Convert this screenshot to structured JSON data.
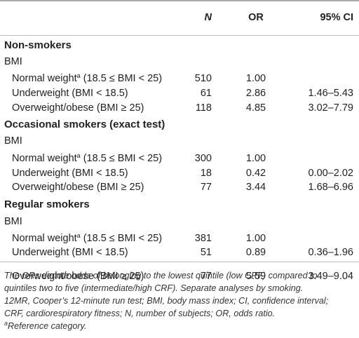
{
  "header": {
    "col_label": "",
    "col_n": "N",
    "col_or": "OR",
    "col_ci": "95% CI"
  },
  "groups": [
    {
      "title": "Non-smokers",
      "subhead": "BMI",
      "rows": [
        {
          "label": "Normal weight",
          "sup": "a",
          "label_rest": " (18.5 ≤ BMI < 25)",
          "n": "510",
          "or": "1.00",
          "ci": ""
        },
        {
          "label": "Underweight (BMI < 18.5)",
          "sup": "",
          "label_rest": "",
          "n": "61",
          "or": "2.86",
          "ci": "1.46–5.43"
        },
        {
          "label": "Overweight/obese (BMI ≥ 25)",
          "sup": "",
          "label_rest": "",
          "n": "118",
          "or": "4.85",
          "ci": "3.02–7.79"
        }
      ]
    },
    {
      "title": "Occasional smokers (exact test)",
      "subhead": "BMI",
      "rows": [
        {
          "label": "Normal weight",
          "sup": "a",
          "label_rest": " (18.5 ≤ BMI < 25)",
          "n": "300",
          "or": "1.00",
          "ci": ""
        },
        {
          "label": "Underweight (BMI < 18.5)",
          "sup": "",
          "label_rest": "",
          "n": "18",
          "or": "0.42",
          "ci": "0.00–2.02"
        },
        {
          "label": "Overweight/obese (BMI ≥ 25)",
          "sup": "",
          "label_rest": "",
          "n": "77",
          "or": "3.44",
          "ci": "1.68–6.96"
        }
      ]
    },
    {
      "title": "Regular smokers",
      "subhead": "BMI",
      "rows": [
        {
          "label": "Normal weight",
          "sup": "a",
          "label_rest": " (18.5 ≤ BMI < 25)",
          "n": "381",
          "or": "1.00",
          "ci": ""
        },
        {
          "label": "Underweight (BMI < 18.5)",
          "sup": "",
          "label_rest": "",
          "n": "51",
          "or": "0.89",
          "ci": "0.36–1.96"
        },
        {
          "label": "Overweight/obese (BMI ≥ 25)",
          "sup": "",
          "label_rest": "",
          "n": "77",
          "or": "5.59",
          "ci": "3.49–9.04"
        }
      ]
    }
  ],
  "footnotes": {
    "line1": "The ORs denote odds of belonging to the lowest quintile (low CRF) compared to",
    "line2": "quintiles two to five (intermediate/high CRF). Separate analyses by smoking.",
    "line3": "12MR, Cooper’s 12-minute run test; BMI, body mass index; CI, confidence interval;",
    "line4": "CRF, cardiorespiratory fitness; N, number of subjects; OR, odds ratio.",
    "ref_sup": "a",
    "ref_text": "Reference category."
  }
}
